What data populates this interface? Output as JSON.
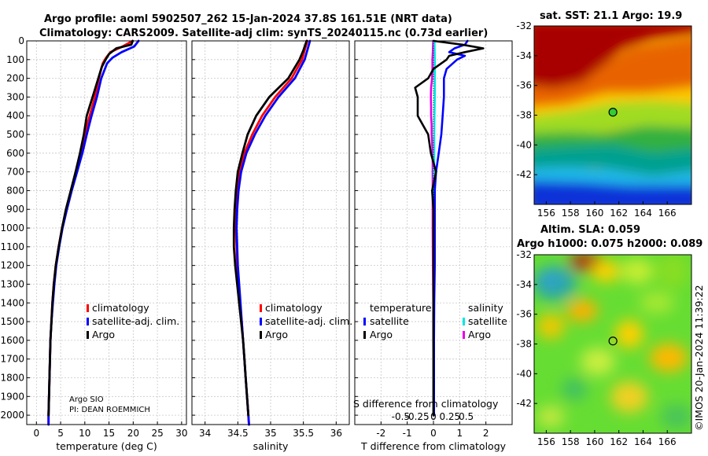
{
  "title_line1": "Argo profile: aoml 5902507_262 15-Jan-2024 37.8S 161.51E (NRT data)",
  "title_line2": "Climatology: CARS2009. Satellite-adj clim: synTS_20240115.nc (0.73d earlier)",
  "credit": {
    "institution": "Argo SIO",
    "pi": "PI: DEAN ROEMMICH",
    "imos": "©IMOS 20-Jan-2024 11:39:22"
  },
  "colors": {
    "climatology": "#ff0000",
    "satellite": "#0000ff",
    "argo": "#000000",
    "sal_satellite": "#00e6e6",
    "sal_argo": "#e600e6"
  },
  "chart_data": [
    {
      "type": "line",
      "name": "temperature-profile",
      "xlabel": "temperature (deg C)",
      "xlim": [
        -2,
        31
      ],
      "ylim": [
        0,
        2050
      ],
      "x_ticks": [
        0,
        5,
        10,
        15,
        20,
        25,
        30
      ],
      "y_ticks": [
        0,
        100,
        200,
        300,
        400,
        500,
        600,
        700,
        800,
        900,
        1000,
        1100,
        1200,
        1300,
        1400,
        1500,
        1600,
        1700,
        1800,
        1900,
        2000
      ],
      "legend": [
        "climatology",
        "satellite-adj. clim.",
        "Argo"
      ],
      "series": [
        {
          "name": "climatology",
          "depth": [
            0,
            30,
            60,
            90,
            120,
            160,
            200,
            300,
            400,
            500,
            600,
            700,
            800,
            900,
            1000,
            1100,
            1200,
            1300,
            1400,
            1500,
            1600,
            1700,
            1800,
            1900,
            2000,
            2050
          ],
          "values": [
            19.9,
            17.8,
            15.3,
            14.4,
            13.7,
            13.3,
            12.9,
            12.1,
            11.0,
            10.0,
            9.2,
            8.2,
            7.2,
            6.2,
            5.3,
            4.6,
            4.0,
            3.6,
            3.3,
            3.1,
            2.9,
            2.8,
            2.7,
            2.6,
            2.5,
            2.5
          ]
        },
        {
          "name": "satellite-adj. clim.",
          "depth": [
            0,
            30,
            60,
            90,
            120,
            160,
            200,
            300,
            400,
            500,
            600,
            700,
            800,
            900,
            1000,
            1100,
            1200,
            1300,
            1400,
            1500,
            1600,
            1700,
            1800,
            1900,
            2000,
            2050
          ],
          "values": [
            21.1,
            20.2,
            17.6,
            15.7,
            14.6,
            14.0,
            13.4,
            12.5,
            11.4,
            10.4,
            9.5,
            8.4,
            7.3,
            6.3,
            5.4,
            4.7,
            4.1,
            3.7,
            3.4,
            3.1,
            2.9,
            2.8,
            2.7,
            2.6,
            2.5,
            2.5
          ]
        },
        {
          "name": "Argo",
          "depth": [
            0,
            20,
            40,
            70,
            100,
            140,
            200,
            300,
            400,
            500,
            600,
            700,
            800,
            900,
            1000,
            1100,
            1200,
            1300,
            1400,
            1500,
            1600,
            1700,
            1800,
            1900,
            2000
          ],
          "values": [
            19.9,
            19.6,
            16.5,
            15.0,
            14.3,
            13.5,
            12.8,
            11.6,
            10.4,
            9.8,
            9.0,
            8.1,
            7.1,
            6.1,
            5.3,
            4.6,
            4.0,
            3.6,
            3.3,
            3.1,
            2.9,
            2.8,
            2.7,
            2.6,
            2.5
          ]
        }
      ]
    },
    {
      "type": "line",
      "name": "salinity-profile",
      "xlabel": "salinity",
      "xlim": [
        33.8,
        36.2
      ],
      "ylim": [
        0,
        2050
      ],
      "x_ticks": [
        34,
        34.5,
        35,
        35.5,
        36
      ],
      "legend": [
        "climatology",
        "satellite-adj. clim.",
        "Argo"
      ],
      "series": [
        {
          "name": "climatology",
          "depth": [
            0,
            50,
            100,
            200,
            300,
            400,
            500,
            600,
            700,
            800,
            900,
            1000,
            1100,
            1200,
            1300,
            1400,
            1500,
            1600,
            1700,
            1800,
            1900,
            2000,
            2050
          ],
          "values": [
            35.56,
            35.52,
            35.48,
            35.32,
            35.07,
            34.87,
            34.72,
            34.6,
            34.53,
            34.5,
            34.48,
            34.47,
            34.48,
            34.49,
            34.51,
            34.53,
            34.56,
            34.58,
            34.6,
            34.62,
            34.64,
            34.66,
            34.67
          ]
        },
        {
          "name": "satellite-adj. clim.",
          "depth": [
            0,
            50,
            100,
            200,
            300,
            400,
            500,
            600,
            700,
            800,
            900,
            1000,
            1100,
            1200,
            1300,
            1400,
            1500,
            1600,
            1700,
            1800,
            1900,
            2000,
            2050
          ],
          "values": [
            35.6,
            35.56,
            35.52,
            35.37,
            35.12,
            34.92,
            34.76,
            34.63,
            34.55,
            34.51,
            34.49,
            34.48,
            34.49,
            34.5,
            34.52,
            34.54,
            34.56,
            34.58,
            34.6,
            34.62,
            34.64,
            34.66,
            34.67
          ]
        },
        {
          "name": "Argo",
          "depth": [
            0,
            50,
            100,
            200,
            300,
            400,
            500,
            600,
            700,
            800,
            900,
            1000,
            1100,
            1200,
            1300,
            1400,
            1500,
            1600,
            1700,
            1800,
            1900,
            2000
          ],
          "values": [
            35.55,
            35.5,
            35.44,
            35.27,
            34.98,
            34.78,
            34.65,
            34.57,
            34.5,
            34.47,
            34.45,
            34.44,
            34.44,
            34.46,
            34.49,
            34.52,
            34.55,
            34.58,
            34.6,
            34.62,
            34.64,
            34.66
          ]
        }
      ]
    },
    {
      "type": "line",
      "name": "difference-profile",
      "xlabel": "T difference from climatology",
      "xlabel_top": "S difference from climatology",
      "xlim": [
        -3,
        3
      ],
      "ylim": [
        0,
        2050
      ],
      "x_ticks": [
        -2,
        -1,
        0,
        1,
        2
      ],
      "s_ticks": [
        -0.5,
        -0.25,
        0,
        0.25,
        0.5
      ],
      "legend_temperature": [
        "temperature",
        "satellite",
        "Argo"
      ],
      "legend_salinity": [
        "salinity",
        "satellite",
        "Argo"
      ],
      "series": [
        {
          "name": "temperature satellite",
          "depth": [
            0,
            20,
            40,
            60,
            80,
            100,
            150,
            200,
            300,
            400,
            500,
            600,
            700,
            800,
            1000,
            1200,
            1400,
            1600,
            1800,
            2000
          ],
          "values": [
            1.3,
            1.2,
            0.8,
            0.6,
            1.2,
            0.9,
            0.5,
            0.4,
            0.4,
            0.35,
            0.3,
            0.2,
            0.1,
            0.05,
            0.05,
            0.05,
            0.03,
            0.02,
            0.02,
            0.02
          ]
        },
        {
          "name": "temperature Argo",
          "depth": [
            0,
            20,
            40,
            60,
            80,
            100,
            150,
            200,
            250,
            300,
            400,
            500,
            600,
            700,
            800,
            900,
            1000,
            1200,
            1400,
            1600,
            1800,
            2000
          ],
          "values": [
            0.0,
            1.1,
            1.9,
            1.2,
            0.6,
            0.5,
            0.0,
            -0.2,
            -0.7,
            -0.6,
            -0.6,
            -0.2,
            -0.1,
            0.1,
            -0.05,
            0.0,
            0.0,
            0.0,
            0.0,
            0.0,
            0.0,
            0.0
          ]
        },
        {
          "name": "salinity satellite",
          "depth": [
            0,
            100,
            200,
            300,
            400,
            500,
            600,
            700,
            800,
            1000,
            1200,
            1400,
            1600,
            1800,
            2000
          ],
          "values": [
            0.04,
            0.05,
            0.05,
            0.05,
            0.04,
            0.03,
            0.03,
            0.02,
            0.02,
            0.01,
            0.01,
            0.0,
            0.0,
            0.0,
            0.0
          ]
        },
        {
          "name": "salinity Argo",
          "depth": [
            0,
            50,
            100,
            150,
            200,
            250,
            300,
            350,
            400,
            450,
            500,
            600,
            700,
            800,
            900,
            1000,
            1200,
            1400,
            1600,
            1800,
            2000
          ],
          "values": [
            -0.01,
            -0.02,
            -0.04,
            -0.04,
            -0.05,
            -0.09,
            -0.1,
            -0.09,
            -0.09,
            -0.07,
            -0.07,
            -0.03,
            -0.03,
            -0.03,
            -0.03,
            -0.03,
            -0.02,
            -0.01,
            -0.01,
            0.0,
            0.0
          ]
        }
      ]
    },
    {
      "type": "heatmap",
      "name": "sst-map",
      "title": "sat. SST: 21.1 Argo: 19.9",
      "x_ticks": [
        156,
        158,
        160,
        162,
        164,
        166
      ],
      "y_ticks": [
        -32,
        -34,
        -36,
        -38,
        -40,
        -42
      ],
      "xlim": [
        155,
        168
      ],
      "ylim": [
        -44,
        -32
      ],
      "marker": {
        "lon": 161.51,
        "lat": -37.8
      }
    },
    {
      "type": "heatmap",
      "name": "sla-map",
      "title_line1": "Altim. SLA: 0.059",
      "title_line2": "Argo h1000: 0.075 h2000: 0.089",
      "x_ticks": [
        156,
        158,
        160,
        162,
        164,
        166
      ],
      "y_ticks": [
        -32,
        -34,
        -36,
        -38,
        -40,
        -42
      ],
      "xlim": [
        155,
        168
      ],
      "ylim": [
        -44,
        -32
      ],
      "marker": {
        "lon": 161.51,
        "lat": -37.8
      }
    }
  ]
}
